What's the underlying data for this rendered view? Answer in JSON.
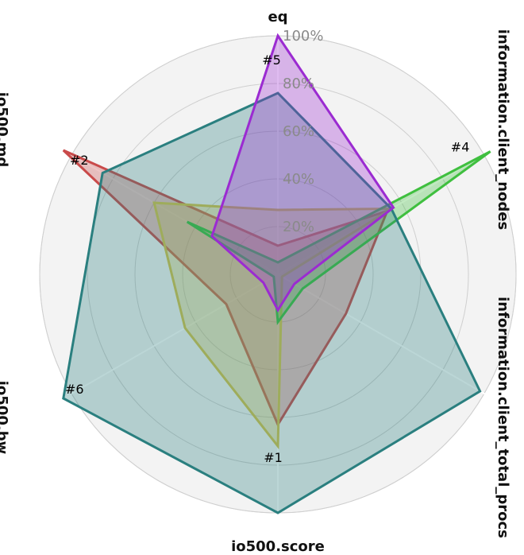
{
  "chart_data": {
    "type": "radar",
    "axes": [
      "eq",
      "information.client_nodes",
      "information.client_total_procs",
      "io500.score",
      "io500.bw",
      "io500.md"
    ],
    "r_ticks": [
      "20%",
      "40%",
      "60%",
      "80%",
      "100%"
    ],
    "r_tick_values": [
      20,
      40,
      60,
      80,
      100
    ],
    "r_range": [
      0,
      100
    ],
    "grid": true,
    "series": [
      {
        "color": "#c94a4a",
        "rank_label": "#2",
        "rank_axis": 5,
        "values": [
          12,
          53,
          33,
          63,
          25,
          104
        ]
      },
      {
        "color": "#d4c24a",
        "rank_label": "#1",
        "rank_axis": 3,
        "values": [
          27,
          55,
          2,
          72,
          45,
          60
        ]
      },
      {
        "color": "#3fbf3f",
        "rank_label": "#4",
        "rank_axis": 1,
        "values": [
          5,
          103,
          12,
          20,
          2,
          44
        ]
      },
      {
        "color": "#2a7f7f",
        "rank_label": "#6",
        "rank_axis": 4,
        "values": [
          76,
          55,
          98,
          100,
          104,
          85
        ]
      },
      {
        "color": "#9b2bd1",
        "rank_label": "#5",
        "rank_axis": 0,
        "values": [
          100,
          56,
          8,
          15,
          7,
          32
        ]
      }
    ]
  }
}
